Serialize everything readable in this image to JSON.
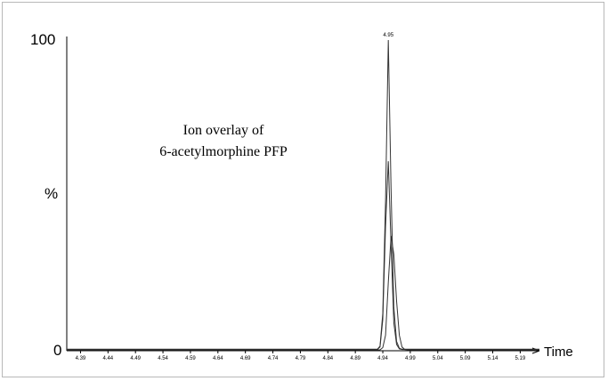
{
  "chart_data": {
    "type": "line",
    "annotation_lines": [
      "Ion overlay of",
      "6-acetylmorphine PFP"
    ],
    "xlabel": "Time",
    "y_tick_labels": [
      "100",
      "%",
      "0"
    ],
    "xlim": [
      4.365,
      5.225
    ],
    "ylim": [
      0,
      100
    ],
    "x_ticks": [
      4.39,
      4.44,
      4.49,
      4.54,
      4.59,
      4.64,
      4.69,
      4.74,
      4.79,
      4.84,
      4.89,
      4.94,
      4.99,
      5.04,
      5.09,
      5.14,
      5.19
    ],
    "x_tick_labels": [
      "4.39",
      "4.44",
      "4.49",
      "4.54",
      "4.59",
      "4.64",
      "4.69",
      "4.74",
      "4.79",
      "4.84",
      "4.89",
      "4.94",
      "4.99",
      "5.04",
      "5.09",
      "5.14",
      "5.19"
    ],
    "peak_label": "4.95",
    "series": [
      {
        "x": [
          4.365,
          4.93,
          4.935,
          4.94,
          4.945,
          4.95,
          4.955,
          4.96,
          4.965,
          4.97,
          4.975,
          4.98,
          5.225
        ],
        "y": [
          0.5,
          0.5,
          1.5,
          12,
          48,
          100,
          52,
          14,
          3,
          0.8,
          0.5,
          0.5,
          0.5
        ]
      },
      {
        "x": [
          4.365,
          4.93,
          4.935,
          4.94,
          4.945,
          4.95,
          4.955,
          4.96,
          4.965,
          4.97,
          4.975,
          4.98,
          5.225
        ],
        "y": [
          0.4,
          0.4,
          1.2,
          10,
          40,
          61,
          34,
          9,
          2,
          0.6,
          0.4,
          0.4,
          0.4
        ]
      },
      {
        "x": [
          4.365,
          4.935,
          4.94,
          4.945,
          4.95,
          4.955,
          4.96,
          4.965,
          4.97,
          4.975,
          4.98,
          4.985,
          5.225
        ],
        "y": [
          0.3,
          0.3,
          1,
          5,
          22,
          37,
          31,
          16,
          5,
          1.2,
          0.4,
          0.3,
          0.3
        ]
      }
    ],
    "colors": {
      "line": "#333333",
      "axis": "#000000"
    }
  }
}
